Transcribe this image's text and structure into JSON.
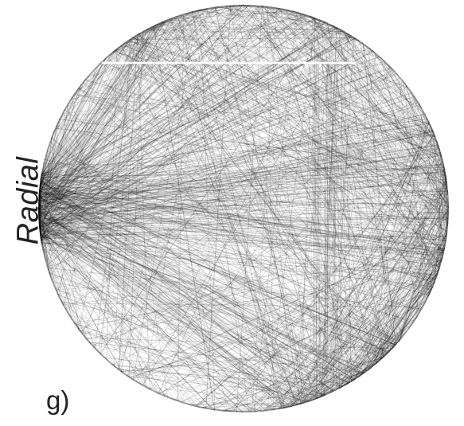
{
  "figure": {
    "layout_label": "Radial",
    "panel_letter": "g)",
    "edge_color": "#000000",
    "background_color": "#ffffff",
    "highlight_line_color": "#ffffff"
  }
}
